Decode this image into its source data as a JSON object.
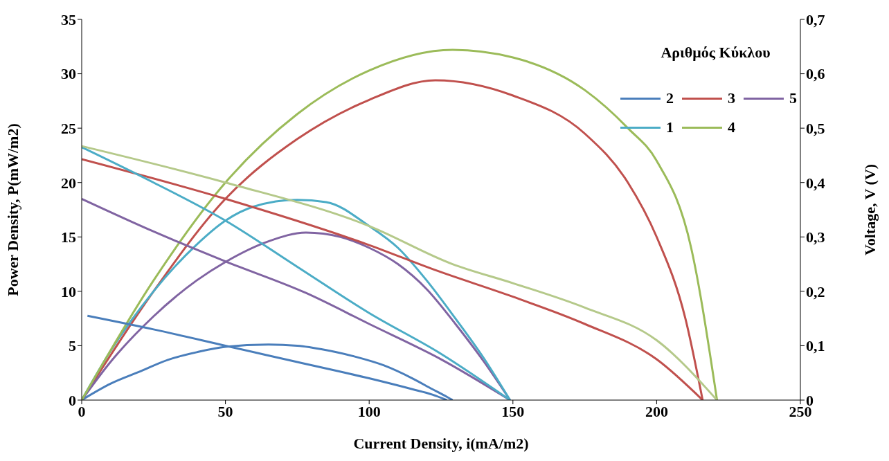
{
  "chart_data": {
    "type": "line",
    "xlabel": "Current Density, i(mA/m2)",
    "ylabel": "Power Density, P(mW/m2)",
    "y2label": "Voltage, V (V)",
    "legend_title": "Αριθμός Κύκλου",
    "legend": "top right",
    "xlim": [
      0,
      250
    ],
    "xticks": [
      0,
      50,
      100,
      150,
      200,
      250
    ],
    "ylim": [
      0,
      35
    ],
    "yticks": [
      0,
      5,
      10,
      15,
      20,
      25,
      30,
      35
    ],
    "y2lim": [
      0,
      0.7
    ],
    "y2ticks": [
      {
        "value": 0,
        "label": "0"
      },
      {
        "value": 0.1,
        "label": "0,1"
      },
      {
        "value": 0.2,
        "label": "0,2"
      },
      {
        "value": 0.3,
        "label": "0,3"
      },
      {
        "value": 0.4,
        "label": "0,4"
      },
      {
        "value": 0.5,
        "label": "0,5"
      },
      {
        "value": 0.6,
        "label": "0,6"
      },
      {
        "value": 0.7,
        "label": "0,7"
      }
    ],
    "series": [
      {
        "name": "2",
        "color": "#4a7ebb",
        "x": [
          0,
          10,
          20,
          30,
          40,
          50,
          65,
          75,
          85,
          95,
          105,
          115,
          122,
          127,
          129
        ],
        "values": [
          0,
          1.5,
          2.6,
          3.7,
          4.4,
          4.9,
          5.1,
          5.0,
          4.6,
          4.0,
          3.2,
          2.0,
          1.0,
          0.3,
          0
        ]
      },
      {
        "name": "3",
        "color": "#c0504d",
        "x": [
          0,
          25,
          50,
          75,
          100,
          123,
          150,
          175,
          190,
          200,
          210,
          216
        ],
        "values": [
          0,
          10,
          18.5,
          24,
          27.6,
          29.4,
          28,
          24.5,
          20,
          15,
          7.5,
          0
        ]
      },
      {
        "name": "5",
        "color": "#8064a2",
        "x": [
          0,
          10,
          25,
          40,
          50,
          65,
          78,
          90,
          100,
          110,
          120,
          130,
          140,
          149
        ],
        "values": [
          0,
          3.5,
          7.7,
          11,
          12.7,
          14.6,
          15.4,
          15,
          14,
          12.5,
          10.2,
          7,
          3.5,
          0
        ]
      },
      {
        "name": "1",
        "color": "#4bacc6",
        "x": [
          0,
          10,
          25,
          40,
          50,
          60,
          75,
          85,
          100,
          110,
          120,
          130,
          140,
          149
        ],
        "values": [
          0,
          4.5,
          10,
          14.3,
          16.5,
          17.8,
          18.4,
          18.2,
          16,
          14,
          11,
          7.5,
          3.8,
          0
        ]
      },
      {
        "name": "4",
        "color": "#9bbb59",
        "x": [
          0,
          25,
          50,
          75,
          100,
          129,
          150,
          175,
          190,
          200,
          212,
          221
        ],
        "values": [
          0,
          11,
          20,
          26.3,
          30.3,
          32.2,
          31.5,
          28.5,
          25,
          22,
          14,
          0
        ]
      },
      {
        "color": "#4a7ebb",
        "axis": "y2",
        "x": [
          2,
          25,
          50,
          75,
          100,
          115,
          122,
          127
        ],
        "values": [
          0.155,
          0.13,
          0.1,
          0.07,
          0.04,
          0.02,
          0.01,
          0
        ]
      },
      {
        "color": "#c0504d",
        "axis": "y2",
        "x": [
          0,
          50,
          100,
          123,
          150,
          175,
          200,
          216
        ],
        "values": [
          0.443,
          0.37,
          0.285,
          0.239,
          0.19,
          0.14,
          0.075,
          0
        ]
      },
      {
        "color": "#8064a2",
        "axis": "y2",
        "x": [
          0,
          25,
          50,
          78,
          100,
          125,
          149
        ],
        "values": [
          0.37,
          0.31,
          0.255,
          0.197,
          0.14,
          0.075,
          0
        ]
      },
      {
        "color": "#4bacc6",
        "axis": "y2",
        "x": [
          0,
          25,
          50,
          75,
          100,
          125,
          149
        ],
        "values": [
          0.465,
          0.4,
          0.33,
          0.245,
          0.16,
          0.085,
          0
        ]
      },
      {
        "color": "#b5c98a",
        "axis": "y2",
        "x": [
          0,
          50,
          100,
          129,
          150,
          175,
          200,
          221
        ],
        "values": [
          0.467,
          0.4,
          0.32,
          0.25,
          0.215,
          0.17,
          0.11,
          0
        ]
      }
    ]
  }
}
